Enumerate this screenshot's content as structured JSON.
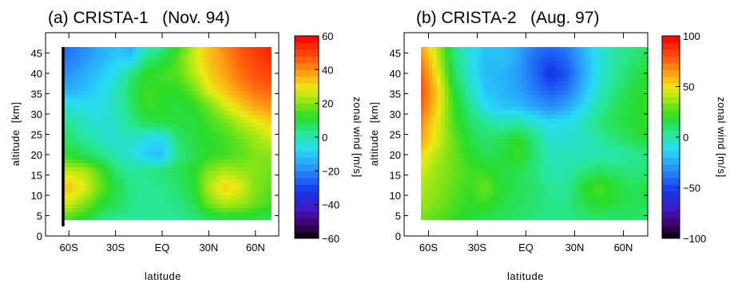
{
  "figure": {
    "type": "contour-pair",
    "colorbar_note": "color scale from black/purple (negative) through blue, cyan, green, yellow to red (positive)"
  },
  "chart_data": [
    {
      "type": "heatmap",
      "title": "(a) CRISTA-1   (Nov. 94)",
      "xlabel": "latitude",
      "ylabel": "altitude  [km]",
      "x_tick_labels": [
        "60S",
        "30S",
        "EQ",
        "30N",
        "60N"
      ],
      "x_tick_values": [
        -60,
        -30,
        0,
        30,
        60
      ],
      "y_ticks": [
        0,
        5,
        10,
        15,
        20,
        25,
        30,
        35,
        40,
        45
      ],
      "xlim": [
        -75,
        75
      ],
      "ylim": [
        0,
        50
      ],
      "data_ylim": [
        4,
        50
      ],
      "colorbar": {
        "label": "zonal wind [m/s]",
        "ticks": [
          60,
          40,
          20,
          0,
          -20,
          -40,
          -60
        ],
        "range": [
          -60,
          60
        ]
      },
      "lat_grid": [
        -67,
        -60,
        -50,
        -40,
        -30,
        -20,
        -10,
        0,
        10,
        20,
        30,
        40,
        50,
        60,
        70
      ],
      "alt_grid": [
        4,
        8,
        12,
        16,
        20,
        24,
        28,
        32,
        36,
        40,
        44,
        48,
        50
      ],
      "values": [
        [
          10,
          14,
          10,
          4,
          2,
          2,
          2,
          2,
          2,
          4,
          6,
          8,
          8,
          8,
          6
        ],
        [
          26,
          26,
          20,
          12,
          8,
          4,
          2,
          3,
          4,
          8,
          18,
          24,
          22,
          18,
          14
        ],
        [
          30,
          34,
          28,
          18,
          10,
          4,
          2,
          3,
          6,
          10,
          24,
          32,
          28,
          20,
          16
        ],
        [
          22,
          26,
          24,
          16,
          6,
          2,
          4,
          6,
          8,
          12,
          20,
          24,
          22,
          20,
          18
        ],
        [
          14,
          12,
          8,
          4,
          0,
          -4,
          -10,
          -12,
          4,
          8,
          12,
          14,
          16,
          20,
          20
        ],
        [
          10,
          6,
          2,
          -2,
          -4,
          -2,
          -6,
          -8,
          6,
          10,
          12,
          14,
          18,
          22,
          26
        ],
        [
          6,
          2,
          -2,
          -4,
          -2,
          4,
          8,
          10,
          10,
          10,
          14,
          18,
          24,
          28,
          32
        ],
        [
          -2,
          -4,
          -6,
          -6,
          -2,
          6,
          14,
          12,
          10,
          12,
          18,
          26,
          32,
          38,
          40
        ],
        [
          -12,
          -14,
          -12,
          -8,
          -2,
          8,
          14,
          12,
          12,
          18,
          28,
          34,
          40,
          44,
          46
        ],
        [
          -20,
          -18,
          -14,
          -10,
          -6,
          4,
          12,
          14,
          16,
          24,
          32,
          38,
          44,
          48,
          50
        ],
        [
          -24,
          -22,
          -18,
          -14,
          -10,
          -10,
          4,
          8,
          16,
          26,
          34,
          40,
          46,
          50,
          54
        ],
        [
          -26,
          -24,
          -20,
          -14,
          -12,
          -16,
          -4,
          2,
          10,
          24,
          34,
          42,
          48,
          52,
          56
        ],
        [
          -26,
          -24,
          -20,
          -14,
          -12,
          -16,
          -6,
          0,
          10,
          24,
          34,
          42,
          48,
          52,
          56
        ]
      ]
    },
    {
      "type": "heatmap",
      "title": "(b) CRISTA-2   (Aug. 97)",
      "xlabel": "latitude",
      "ylabel": "altitude  [km]",
      "x_tick_labels": [
        "60S",
        "30S",
        "EQ",
        "30N",
        "60N"
      ],
      "x_tick_values": [
        -60,
        -30,
        0,
        30,
        60
      ],
      "y_ticks": [
        0,
        5,
        10,
        15,
        20,
        25,
        30,
        35,
        40,
        45
      ],
      "xlim": [
        -75,
        75
      ],
      "ylim": [
        0,
        50
      ],
      "data_ylim": [
        4,
        50
      ],
      "colorbar": {
        "label": "zonal wind [m/s]",
        "ticks": [
          100,
          50,
          0,
          -50,
          -100
        ],
        "range": [
          -100,
          100
        ]
      },
      "lat_grid": [
        -75,
        -65,
        -55,
        -45,
        -35,
        -25,
        -15,
        -5,
        5,
        15,
        25,
        35,
        45,
        55,
        65,
        75
      ],
      "alt_grid": [
        4,
        8,
        12,
        16,
        20,
        24,
        28,
        32,
        36,
        40,
        44,
        48,
        50
      ],
      "values": [
        [
          30,
          30,
          26,
          22,
          18,
          14,
          12,
          10,
          8,
          6,
          6,
          8,
          10,
          10,
          10,
          10
        ],
        [
          34,
          36,
          32,
          26,
          20,
          22,
          16,
          12,
          10,
          6,
          6,
          14,
          20,
          16,
          14,
          14
        ],
        [
          40,
          40,
          34,
          28,
          22,
          30,
          18,
          14,
          10,
          4,
          4,
          18,
          26,
          18,
          12,
          18
        ],
        [
          46,
          44,
          36,
          30,
          24,
          22,
          16,
          14,
          8,
          0,
          0,
          8,
          12,
          10,
          8,
          8
        ],
        [
          56,
          52,
          40,
          30,
          20,
          14,
          16,
          24,
          10,
          -2,
          -2,
          -2,
          0,
          0,
          4,
          6
        ],
        [
          70,
          64,
          46,
          30,
          16,
          10,
          14,
          20,
          8,
          -6,
          -6,
          -4,
          2,
          8,
          14,
          20
        ],
        [
          74,
          70,
          48,
          26,
          12,
          4,
          -2,
          2,
          -6,
          -12,
          -10,
          -2,
          8,
          14,
          18,
          22
        ],
        [
          80,
          78,
          54,
          24,
          6,
          -12,
          -18,
          -20,
          -26,
          -32,
          -26,
          -14,
          2,
          12,
          18,
          22
        ],
        [
          84,
          82,
          56,
          20,
          0,
          -18,
          -22,
          -26,
          -36,
          -44,
          -38,
          -22,
          -4,
          8,
          16,
          22
        ],
        [
          80,
          78,
          50,
          14,
          -6,
          -20,
          -22,
          -28,
          -40,
          -56,
          -46,
          -26,
          -8,
          4,
          12,
          20
        ],
        [
          72,
          70,
          44,
          10,
          -8,
          -20,
          -18,
          -26,
          -40,
          -46,
          -40,
          -24,
          -8,
          2,
          8,
          14
        ],
        [
          64,
          62,
          40,
          8,
          -10,
          -18,
          -16,
          -24,
          -34,
          -40,
          -34,
          -20,
          -6,
          2,
          6,
          10
        ],
        [
          64,
          62,
          40,
          8,
          -10,
          -18,
          -16,
          -24,
          -34,
          -40,
          -34,
          -20,
          -6,
          2,
          6,
          10
        ]
      ]
    }
  ]
}
